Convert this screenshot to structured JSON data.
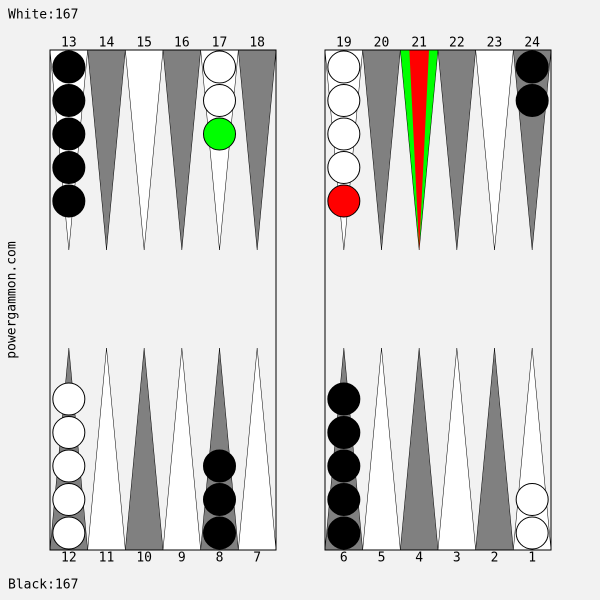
{
  "header": {
    "white": "White:167",
    "black": "Black:167"
  },
  "side_label": "powergammon.com",
  "points": {
    "top": [
      "13",
      "14",
      "15",
      "16",
      "17",
      "18",
      "19",
      "20",
      "21",
      "22",
      "23",
      "24"
    ],
    "bottom": [
      "12",
      "11",
      "10",
      "9",
      "8",
      "7",
      "6",
      "5",
      "4",
      "3",
      "2",
      "1"
    ]
  }
}
